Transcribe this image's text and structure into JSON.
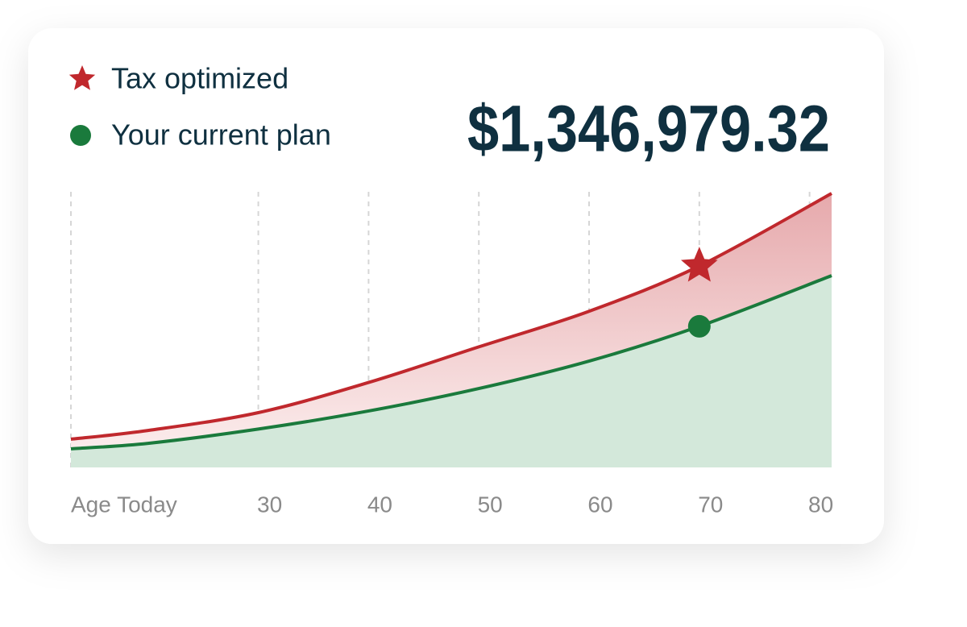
{
  "chart_data": {
    "type": "area",
    "highlight_label": "$1,346,979.32",
    "x": [
      13,
      20,
      30,
      40,
      50,
      60,
      70,
      82
    ],
    "xlim": [
      13,
      82
    ],
    "xticks": [
      {
        "value": 13,
        "label": "Age Today"
      },
      30,
      40,
      50,
      60,
      70,
      80
    ],
    "ylim": [
      0,
      100
    ],
    "grid": true,
    "series": [
      {
        "name": "Tax optimized",
        "color": "#c0282d",
        "marker": "star",
        "values": [
          10.3,
          13.5,
          20,
          31,
          44,
          57,
          73.5,
          100
        ]
      },
      {
        "name": "Your current plan",
        "color": "#1a7a3c",
        "marker": "circle",
        "values": [
          6.8,
          8.8,
          14,
          20.6,
          28.8,
          38.8,
          51.5,
          70
        ]
      }
    ],
    "marker_index": 6
  }
}
